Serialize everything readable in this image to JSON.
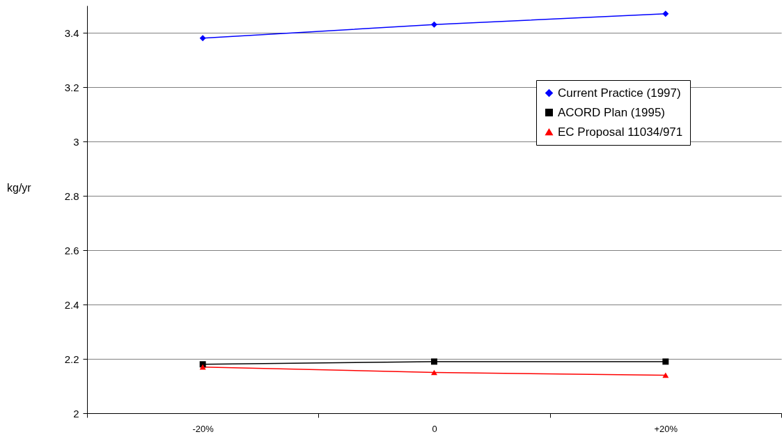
{
  "chart_data": {
    "type": "line",
    "ylabel": "kg/yr",
    "categories": [
      "-20%",
      "0",
      "+20%"
    ],
    "series": [
      {
        "name": "Current Practice (1997)",
        "color": "#0000ff",
        "marker": "diamond",
        "values": [
          3.38,
          3.43,
          3.47
        ]
      },
      {
        "name": "ACORD Plan (1995)",
        "color": "#000000",
        "marker": "square",
        "values": [
          2.18,
          2.19,
          2.19
        ]
      },
      {
        "name": "EC Proposal 11034/971",
        "color": "#ff0000",
        "marker": "triangle",
        "values": [
          2.17,
          2.15,
          2.14
        ]
      }
    ],
    "ylim": [
      2,
      3.5
    ],
    "yticks": [
      2,
      2.2,
      2.4,
      2.6,
      2.8,
      3,
      3.2,
      3.4
    ],
    "grid": "y",
    "legend": "right"
  }
}
